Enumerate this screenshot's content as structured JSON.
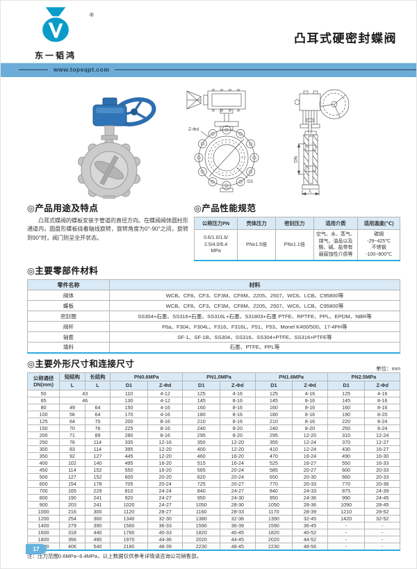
{
  "header": {
    "brand_name": "东一韬鸿",
    "registered_mark": "®",
    "title": "凸耳式硬密封蝶阀"
  },
  "banner": {
    "url": "www.topeqpt.com"
  },
  "drawings": {
    "front_view": {
      "bolt_label": "Z-Φd",
      "circle_label": "D1"
    },
    "side_view": {
      "dn_label": "DN",
      "l_label": "L"
    }
  },
  "sections": {
    "usage": {
      "title": "◎产品用途及特点",
      "body": "凸耳式蝶阀的蝶板安装于管道的直径方向。在蝶阀阀体圆柱形通道内，圆盘形蝶板绕着轴线旋转，旋转角度为0°-90°之间，旋转到90°时，阀门则呈全开状态。"
    },
    "performance": {
      "title": "◎产品性能规范",
      "headers": [
        "公称压力PN",
        "壳体压力",
        "密封压力",
        "适用介质",
        "适用温度(℃)"
      ],
      "row": [
        "0.6/1.0/1.6/\n2.5/4.0/6.4\nMPa",
        "PNx1.5倍",
        "PNx1.1倍",
        "空气、水、蒸气、\n煤气、油品以及\n酸、碱、盐带有\n弱腐蚀性介质等",
        "碳钢\n-29~425℃\n不锈钢\n-100~800℃"
      ]
    },
    "materials": {
      "title": "◎主要零部件材料",
      "headers": [
        "零件名称",
        "材料"
      ],
      "rows": [
        [
          "阀体",
          "WCB、CF8、CF3、CF3M、CF8M、2205、2507、WC6、LCB、C95800等"
        ],
        [
          "蝶板",
          "WCB、CF8、CF3、CF3M、CF8M、2205、2507、WC6、LCB、C95800等"
        ],
        [
          "密封圈",
          "SS304+石墨、SS316+石墨、SS316L+石墨、S31803+石墨 PTFE、RPTFE、PPL、EPDM、NBR等"
        ],
        [
          "阀杆",
          "F6a、F304、F304L、F316、F316L、F51、F53、Monel K400/500、17-4PH等"
        ],
        [
          "轴套",
          "SF-1、SF-1B、SS304、SS316、SS304+PTFE、SS316+PTFE等"
        ],
        [
          "填料",
          "石墨、PTFE、PPL等"
        ]
      ]
    },
    "dimensions": {
      "title": "◎主要外形尺寸和连接尺寸",
      "unit": "单位：mm",
      "col_dn": "公称通径\nDN(mm)",
      "col_short": "短结构",
      "col_long": "长结构",
      "col_l": "L",
      "col_d1": "D1",
      "col_z": "Z-Φd",
      "groups": [
        "PN0.6MPa",
        "PN1.0MPa",
        "PN1.6MPa",
        "PN2.5MPa"
      ],
      "rows": [
        [
          "50",
          "43",
          null,
          "110",
          "4-12",
          "125",
          "4-16",
          "125",
          "4-16",
          "125",
          "4-16"
        ],
        [
          "65",
          "46",
          null,
          "130",
          "4-12",
          "145",
          "8-16",
          "145",
          "8-16",
          "145",
          "8-16"
        ],
        [
          "80",
          "49",
          "64",
          "150",
          "4-16",
          "160",
          "8-16",
          "160",
          "8-16",
          "160",
          "8-16"
        ],
        [
          "100",
          "56",
          "64",
          "170",
          "4-16",
          "180",
          "8-16",
          "180",
          "8-16",
          "190",
          "8-20"
        ],
        [
          "125",
          "64",
          "70",
          "200",
          "8-16",
          "210",
          "8-16",
          "210",
          "8-16",
          "220",
          "8-24"
        ],
        [
          "150",
          "70",
          "76",
          "225",
          "8-16",
          "240",
          "8-20",
          "240",
          "8-20",
          "250",
          "8-24"
        ],
        [
          "200",
          "71",
          "89",
          "280",
          "8-16",
          "295",
          "8-20",
          "295",
          "12-20",
          "310",
          "12-24"
        ],
        [
          "250",
          "76",
          "114",
          "335",
          "12-16",
          "350",
          "12-20",
          "355",
          "12-24",
          "370",
          "12-27"
        ],
        [
          "300",
          "83",
          "114",
          "395",
          "12-20",
          "400",
          "12-20",
          "410",
          "12-24",
          "430",
          "16-27"
        ],
        [
          "350",
          "92",
          "127",
          "445",
          "12-20",
          "460",
          "16-20",
          "470",
          "16-24",
          "490",
          "16-30"
        ],
        [
          "400",
          "102",
          "140",
          "495",
          "16-20",
          "515",
          "16-24",
          "525",
          "16-27",
          "550",
          "16-33"
        ],
        [
          "450",
          "114",
          "152",
          "550",
          "16-20",
          "565",
          "20-24",
          "585",
          "20-27",
          "600",
          "20-33"
        ],
        [
          "500",
          "127",
          "152",
          "600",
          "20-20",
          "620",
          "20-24",
          "650",
          "20-30",
          "660",
          "20-33"
        ],
        [
          "600",
          "154",
          "178",
          "705",
          "20-24",
          "725",
          "20-27",
          "770",
          "20-33",
          "770",
          "20-36"
        ],
        [
          "700",
          "165",
          "229",
          "810",
          "24-24",
          "840",
          "24-27",
          "840",
          "24-33",
          "875",
          "24-39"
        ],
        [
          "800",
          "190",
          "241",
          "920",
          "24-27",
          "950",
          "24-30",
          "950",
          "24-36",
          "990",
          "24-45"
        ],
        [
          "900",
          "203",
          "241",
          "1020",
          "24-27",
          "1050",
          "28-30",
          "1050",
          "28-36",
          "1090",
          "28-45"
        ],
        [
          "1000",
          "216",
          "300",
          "1120",
          "28-27",
          "1160",
          "28-33",
          "1170",
          "28-39",
          "1210",
          "28-52"
        ],
        [
          "1200",
          "254",
          "360",
          "1340",
          "32-30",
          "1380",
          "32-36",
          "1390",
          "32-45",
          "1420",
          "32-52"
        ],
        [
          "1400",
          "279",
          "390",
          "1560",
          "36-33",
          "1590",
          "36-39",
          "1590",
          "36-45",
          "-",
          "-"
        ],
        [
          "1600",
          "318",
          "440",
          "1760",
          "40-33",
          "1820",
          "40-45",
          "1820",
          "40-52",
          "-",
          "-"
        ],
        [
          "1800",
          "356",
          "490",
          "1970",
          "44-36",
          "2020",
          "44-45",
          "2020",
          "44-52",
          "-",
          "-"
        ],
        [
          "2000",
          "406",
          "540",
          "2180",
          "48-39",
          "2230",
          "48-45",
          "2230",
          "48-56",
          "-",
          "-"
        ]
      ],
      "note": "注：压力范围0.6MPa~6.4MPa，以上数据仅供参考详情请咨询公司销售部。"
    }
  },
  "footer": {
    "page_number": "17"
  },
  "colors": {
    "banner_blue": "#6cacd8",
    "logo_blue": "#0a9cc9",
    "accent_blue": "#2ba9e0",
    "table_header_bg": "#d9eaf6",
    "badge_blue": "#66b2df",
    "handwheel_blue": "#2c6fb0"
  }
}
